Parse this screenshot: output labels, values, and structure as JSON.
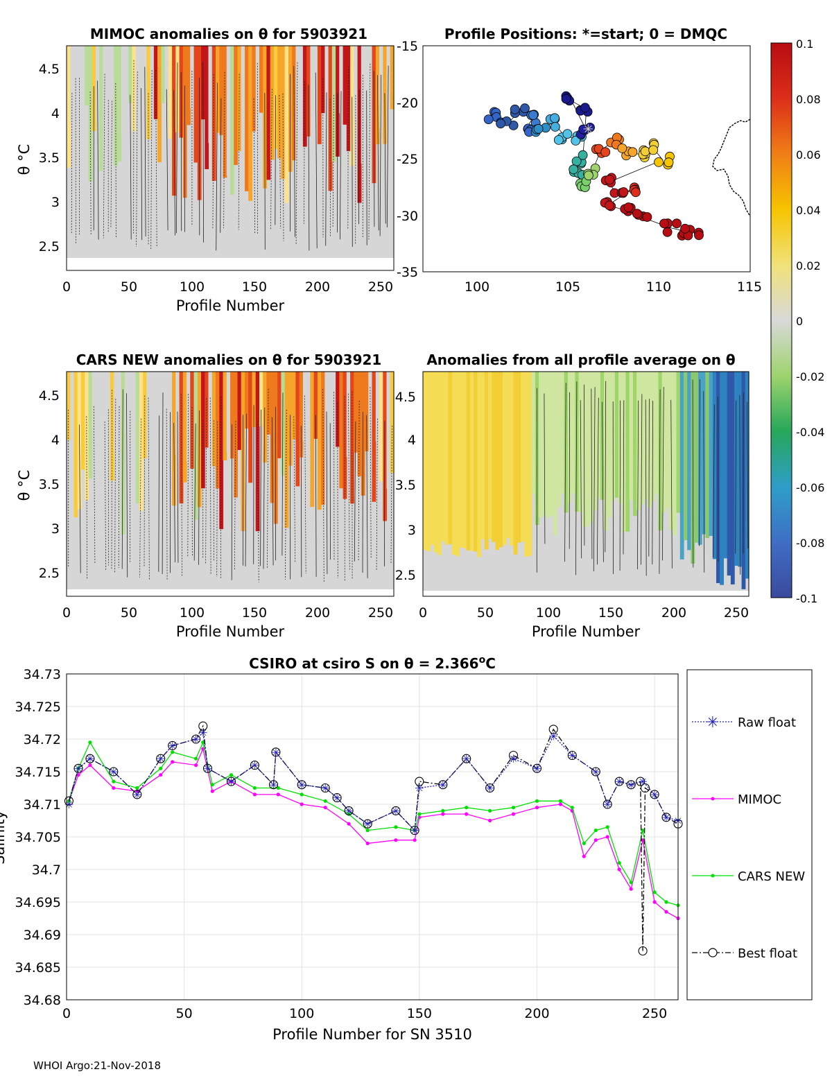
{
  "panels": {
    "mimoc": {
      "title": "MIMOC anomalies on θ  for 5903921",
      "xlabel": "Profile Number",
      "ylabel": "θ °C",
      "xticks": [
        "0",
        "50",
        "100",
        "150",
        "200",
        "250"
      ],
      "yticks": [
        "2.5",
        "3",
        "3.5",
        "4",
        "4.5"
      ]
    },
    "positions": {
      "title": "Profile Positions: *=start; 0 = DMQC",
      "xticks": [
        "100",
        "105",
        "110",
        "115"
      ],
      "yticks": [
        "-15",
        "-20",
        "-25",
        "-30",
        "-35"
      ]
    },
    "cars": {
      "title": "CARS NEW anomalies on θ for 5903921",
      "xlabel": "Profile Number",
      "ylabel": "θ °C",
      "xticks": [
        "0",
        "50",
        "100",
        "150",
        "200",
        "250"
      ],
      "yticks": [
        "2.5",
        "3",
        "3.5",
        "4",
        "4.5"
      ]
    },
    "allavg": {
      "title": "Anomalies from all profile average on θ",
      "xlabel": "Profile Number",
      "xticks": [
        "0",
        "50",
        "100",
        "150",
        "200",
        "250"
      ],
      "yticks": [
        "2.5",
        "3",
        "3.5",
        "4",
        "4.5"
      ]
    }
  },
  "colorbar": {
    "ticks": [
      "0.1",
      "0.08",
      "0.06",
      "0.04",
      "0.02",
      "0",
      "-0.02",
      "-0.04",
      "-0.06",
      "-0.08",
      "-0.1"
    ]
  },
  "footer": "WHOI Argo:21-Nov-2018",
  "colors": {
    "raw": "#1f1fb4",
    "mimoc": "#ff00ff",
    "cars": "#00e000",
    "best": "#000000"
  },
  "chart_data": {
    "type": "line",
    "title": "CSIRO at csiro S on θ = 2.366°C",
    "title_prefix": "CSIRO at csiro S on θ = 2.366",
    "title_deg": "o",
    "title_suffix": "C",
    "xlabel": "Profile Number for SN 3510",
    "ylabel": "Salinity",
    "xlim": [
      0,
      260
    ],
    "ylim": [
      34.68,
      34.73
    ],
    "xticks": [
      "0",
      "50",
      "100",
      "150",
      "200",
      "250"
    ],
    "yticks": [
      "34.68",
      "34.685",
      "34.69",
      "34.695",
      "34.7",
      "34.705",
      "34.71",
      "34.715",
      "34.72",
      "34.725",
      "34.73"
    ],
    "grid": true,
    "legend_position": "right-outside",
    "series": [
      {
        "name": "Raw float",
        "style": "dotted-star",
        "x": [
          1,
          5,
          10,
          20,
          30,
          40,
          45,
          55,
          58,
          60,
          70,
          80,
          88,
          89,
          100,
          110,
          115,
          120,
          128,
          140,
          148,
          150,
          160,
          170,
          180,
          190,
          200,
          207,
          215,
          225,
          230,
          235,
          240,
          245,
          250,
          255,
          260
        ],
        "y": [
          34.71,
          34.7155,
          34.717,
          34.715,
          34.7115,
          34.717,
          34.719,
          34.72,
          34.721,
          34.7155,
          34.7135,
          34.716,
          34.713,
          34.718,
          34.713,
          34.7125,
          34.711,
          34.709,
          34.707,
          34.709,
          34.706,
          34.7125,
          34.713,
          34.717,
          34.7125,
          34.717,
          34.7155,
          34.7205,
          34.7175,
          34.715,
          34.71,
          34.7135,
          34.713,
          34.7135,
          34.7115,
          34.708,
          34.7075
        ]
      },
      {
        "name": "MIMOC",
        "style": "solid-dot",
        "x": [
          1,
          5,
          10,
          20,
          30,
          40,
          45,
          55,
          58,
          62,
          70,
          80,
          90,
          100,
          110,
          120,
          128,
          140,
          148,
          150,
          160,
          170,
          180,
          190,
          200,
          210,
          215,
          220,
          225,
          230,
          235,
          240,
          245,
          250,
          255,
          260
        ],
        "y": [
          34.7105,
          34.7145,
          34.716,
          34.7125,
          34.712,
          34.7145,
          34.7165,
          34.716,
          34.7185,
          34.712,
          34.7135,
          34.7115,
          34.7115,
          34.71,
          34.7095,
          34.707,
          34.704,
          34.7045,
          34.7045,
          34.708,
          34.7085,
          34.7085,
          34.7075,
          34.7085,
          34.7095,
          34.71,
          34.709,
          34.702,
          34.7045,
          34.705,
          34.7,
          34.697,
          34.7045,
          34.695,
          34.6935,
          34.6925
        ]
      },
      {
        "name": "CARS NEW",
        "style": "solid-dot",
        "x": [
          1,
          5,
          10,
          20,
          30,
          40,
          45,
          55,
          58,
          62,
          70,
          80,
          90,
          100,
          110,
          120,
          128,
          140,
          148,
          150,
          160,
          170,
          180,
          190,
          200,
          210,
          215,
          220,
          225,
          230,
          235,
          240,
          245,
          250,
          255,
          260
        ],
        "y": [
          34.7105,
          34.7155,
          34.7195,
          34.7135,
          34.7125,
          34.7155,
          34.718,
          34.717,
          34.7195,
          34.713,
          34.7145,
          34.7125,
          34.7125,
          34.7115,
          34.7105,
          34.7085,
          34.706,
          34.7065,
          34.706,
          34.7085,
          34.709,
          34.7095,
          34.709,
          34.7095,
          34.7105,
          34.7105,
          34.7095,
          34.704,
          34.706,
          34.7065,
          34.701,
          34.698,
          34.706,
          34.6965,
          34.695,
          34.6945
        ]
      },
      {
        "name": "Best float",
        "style": "dashdot-circle",
        "x": [
          1,
          5,
          10,
          20,
          30,
          40,
          45,
          55,
          58,
          60,
          70,
          80,
          88,
          89,
          100,
          110,
          115,
          120,
          128,
          140,
          148,
          150,
          160,
          170,
          180,
          190,
          200,
          207,
          215,
          225,
          230,
          235,
          240,
          244,
          245,
          246,
          250,
          255,
          260
        ],
        "y": [
          34.7105,
          34.7155,
          34.717,
          34.715,
          34.7115,
          34.717,
          34.719,
          34.72,
          34.722,
          34.7155,
          34.7135,
          34.716,
          34.713,
          34.718,
          34.713,
          34.7125,
          34.711,
          34.709,
          34.707,
          34.709,
          34.706,
          34.7135,
          34.713,
          34.717,
          34.7125,
          34.7175,
          34.7155,
          34.7215,
          34.7175,
          34.715,
          34.71,
          34.7135,
          34.713,
          34.7135,
          34.6875,
          34.7125,
          34.7115,
          34.708,
          34.707
        ]
      }
    ]
  }
}
